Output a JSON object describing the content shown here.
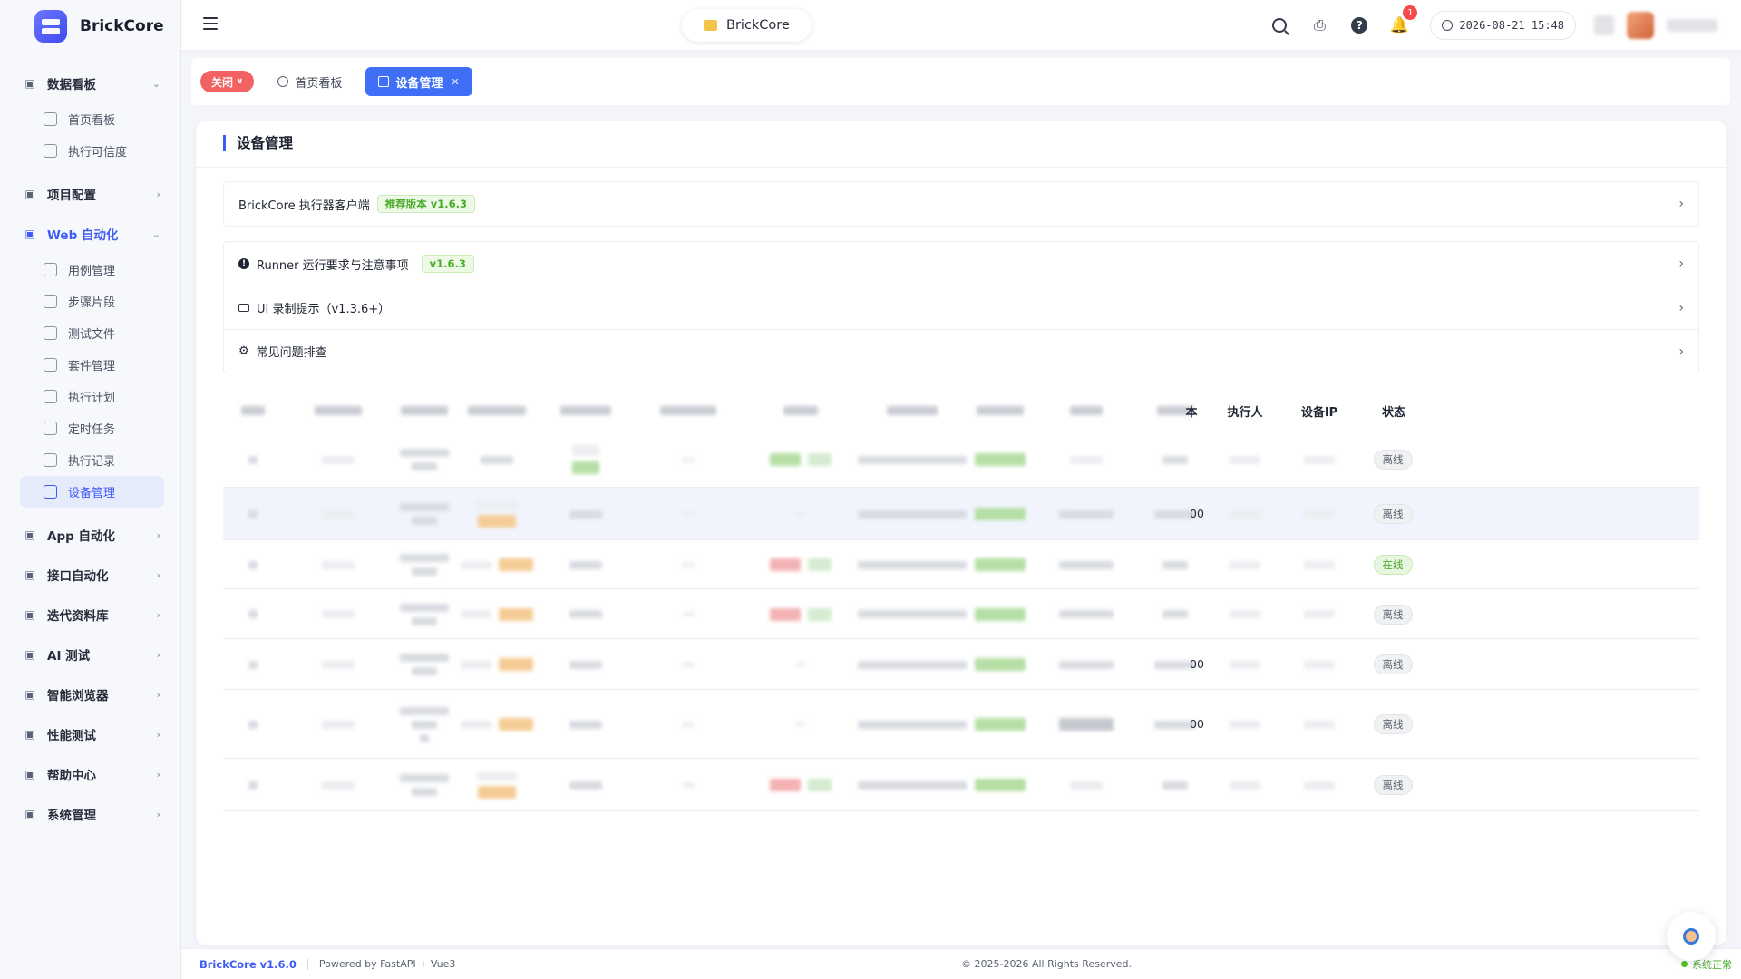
{
  "brand": {
    "name": "BrickCore"
  },
  "sidebar": {
    "groups": [
      {
        "label": "数据看板",
        "icon": "shield-icon",
        "expanded": true,
        "items": [
          {
            "label": "首页看板",
            "icon": "dashboard-icon"
          },
          {
            "label": "执行可信度",
            "icon": "chart-icon"
          }
        ]
      },
      {
        "label": "项目配置",
        "icon": "project-icon"
      },
      {
        "label": "Web 自动化",
        "icon": "web-icon",
        "expanded": true,
        "active": true,
        "items": [
          {
            "label": "用例管理",
            "icon": "case-icon"
          },
          {
            "label": "步骤片段",
            "icon": "step-icon"
          },
          {
            "label": "测试文件",
            "icon": "folder-icon"
          },
          {
            "label": "套件管理",
            "icon": "suite-icon"
          },
          {
            "label": "执行计划",
            "icon": "calendar-icon"
          },
          {
            "label": "定时任务",
            "icon": "timer-icon"
          },
          {
            "label": "执行记录",
            "icon": "record-icon"
          },
          {
            "label": "设备管理",
            "icon": "monitor-icon",
            "active": true
          }
        ]
      },
      {
        "label": "App 自动化",
        "icon": "phone-icon"
      },
      {
        "label": "接口自动化",
        "icon": "api-icon"
      },
      {
        "label": "迭代资料库",
        "icon": "doc-icon"
      },
      {
        "label": "AI 测试",
        "icon": "ai-icon"
      },
      {
        "label": "智能浏览器",
        "icon": "browser-icon"
      },
      {
        "label": "性能测试",
        "icon": "perf-icon"
      },
      {
        "label": "帮助中心",
        "icon": "book-icon"
      },
      {
        "label": "系统管理",
        "icon": "gear-icon"
      }
    ]
  },
  "header": {
    "project": "BrickCore",
    "notification_count": "1",
    "datetime": "2026-08-21 15:48"
  },
  "tabs": {
    "close_label": "关闭",
    "items": [
      {
        "label": "首页看板",
        "active": false
      },
      {
        "label": "设备管理",
        "active": true
      }
    ]
  },
  "page": {
    "title": "设备管理",
    "client_panel": {
      "label": "BrickCore 执行器客户端",
      "tag": "推荐版本 v1.6.3"
    },
    "info_rows": [
      {
        "label": "Runner 运行要求与注意事项",
        "tag": "v1.6.3",
        "icon": "info-icon"
      },
      {
        "label": "UI 录制提示（v1.3.6+）",
        "icon": "camera-icon"
      },
      {
        "label": "常见问题排查",
        "icon": "gear-icon"
      }
    ]
  },
  "table": {
    "visible_headers": {
      "col11_suffix": "本",
      "executor": "执行人",
      "device_ip": "设备IP",
      "status": "状态"
    },
    "rows": [
      {
        "status": "离线",
        "online": false,
        "col11_suffix": ""
      },
      {
        "status": "离线",
        "online": false,
        "col11_suffix": "00"
      },
      {
        "status": "在线",
        "online": true,
        "col11_suffix": ""
      },
      {
        "status": "离线",
        "online": false,
        "col11_suffix": ""
      },
      {
        "status": "离线",
        "online": false,
        "col11_suffix": "00"
      },
      {
        "status": "离线",
        "online": false,
        "col11_suffix": "00"
      },
      {
        "status": "离线",
        "online": false,
        "col11_suffix": ""
      }
    ]
  },
  "footer": {
    "version": "BrickCore v1.6.0",
    "powered": "Powered by FastAPI + Vue3",
    "copyright": "© 2025-2026 All Rights Reserved.",
    "system_status": "系统正常"
  },
  "colors": {
    "accent": "#3f5bf6",
    "close": "#f26262",
    "online": "#49a92a"
  }
}
